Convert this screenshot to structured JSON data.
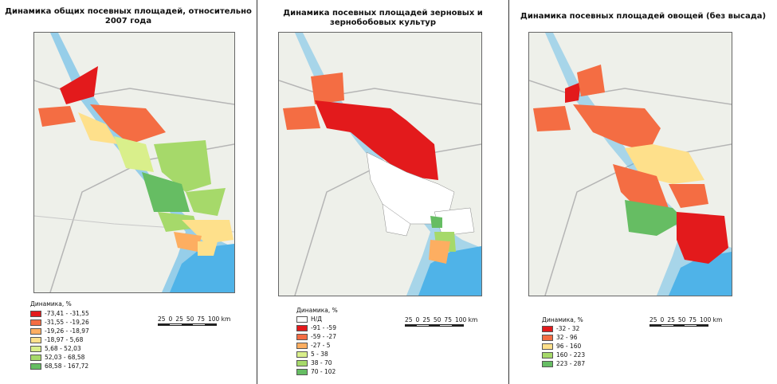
{
  "panels": [
    {
      "title_line1": "Динамика общих посевных площадей, относительно",
      "title_line2": "2007 года",
      "legend_title": "Динамика, %",
      "legend": [
        {
          "label": "-73,41 - -31,55",
          "color": "#e31a1c"
        },
        {
          "label": "-31,55 - -19,26",
          "color": "#f46d43"
        },
        {
          "label": "-19,26 - -18,97",
          "color": "#fdae61"
        },
        {
          "label": "-18,97 - 5,68",
          "color": "#fee08b"
        },
        {
          "label": "5,68 - 52,03",
          "color": "#d9ef8b"
        },
        {
          "label": "52,03 - 68,58",
          "color": "#a6d96a"
        },
        {
          "label": "68,58 - 167,72",
          "color": "#66bd63"
        }
      ]
    },
    {
      "title_line1": "Динамика посевных площадей зерновых и",
      "title_line2": "зернобобовых культур",
      "legend_title": "Динамика, %",
      "legend": [
        {
          "label": "Н/Д",
          "color": "#ffffff"
        },
        {
          "label": "-91 - -59",
          "color": "#e31a1c"
        },
        {
          "label": "-59 - -27",
          "color": "#f46d43"
        },
        {
          "label": "-27 - 5",
          "color": "#fdae61"
        },
        {
          "label": "5 - 38",
          "color": "#d9ef8b"
        },
        {
          "label": "38 - 70",
          "color": "#a6d96a"
        },
        {
          "label": "70 - 102",
          "color": "#66bd63"
        }
      ]
    },
    {
      "title_line1": "Динамика посевных площадей овощей (без высада)",
      "title_line2": "",
      "legend_title": "Динамика, %",
      "legend": [
        {
          "label": "-32 - 32",
          "color": "#e31a1c"
        },
        {
          "label": "32 - 96",
          "color": "#f46d43"
        },
        {
          "label": "96 - 160",
          "color": "#fee08b"
        },
        {
          "label": "160 - 223",
          "color": "#a6d96a"
        },
        {
          "label": "223 - 287",
          "color": "#66bd63"
        }
      ]
    }
  ],
  "scale_bar": {
    "labels": [
      "25",
      "0",
      "25",
      "50",
      "75",
      "100 km"
    ]
  },
  "colors": {
    "water": "#4fb3e8",
    "land": "#eef0ea",
    "roads": "#b5b5b5"
  }
}
